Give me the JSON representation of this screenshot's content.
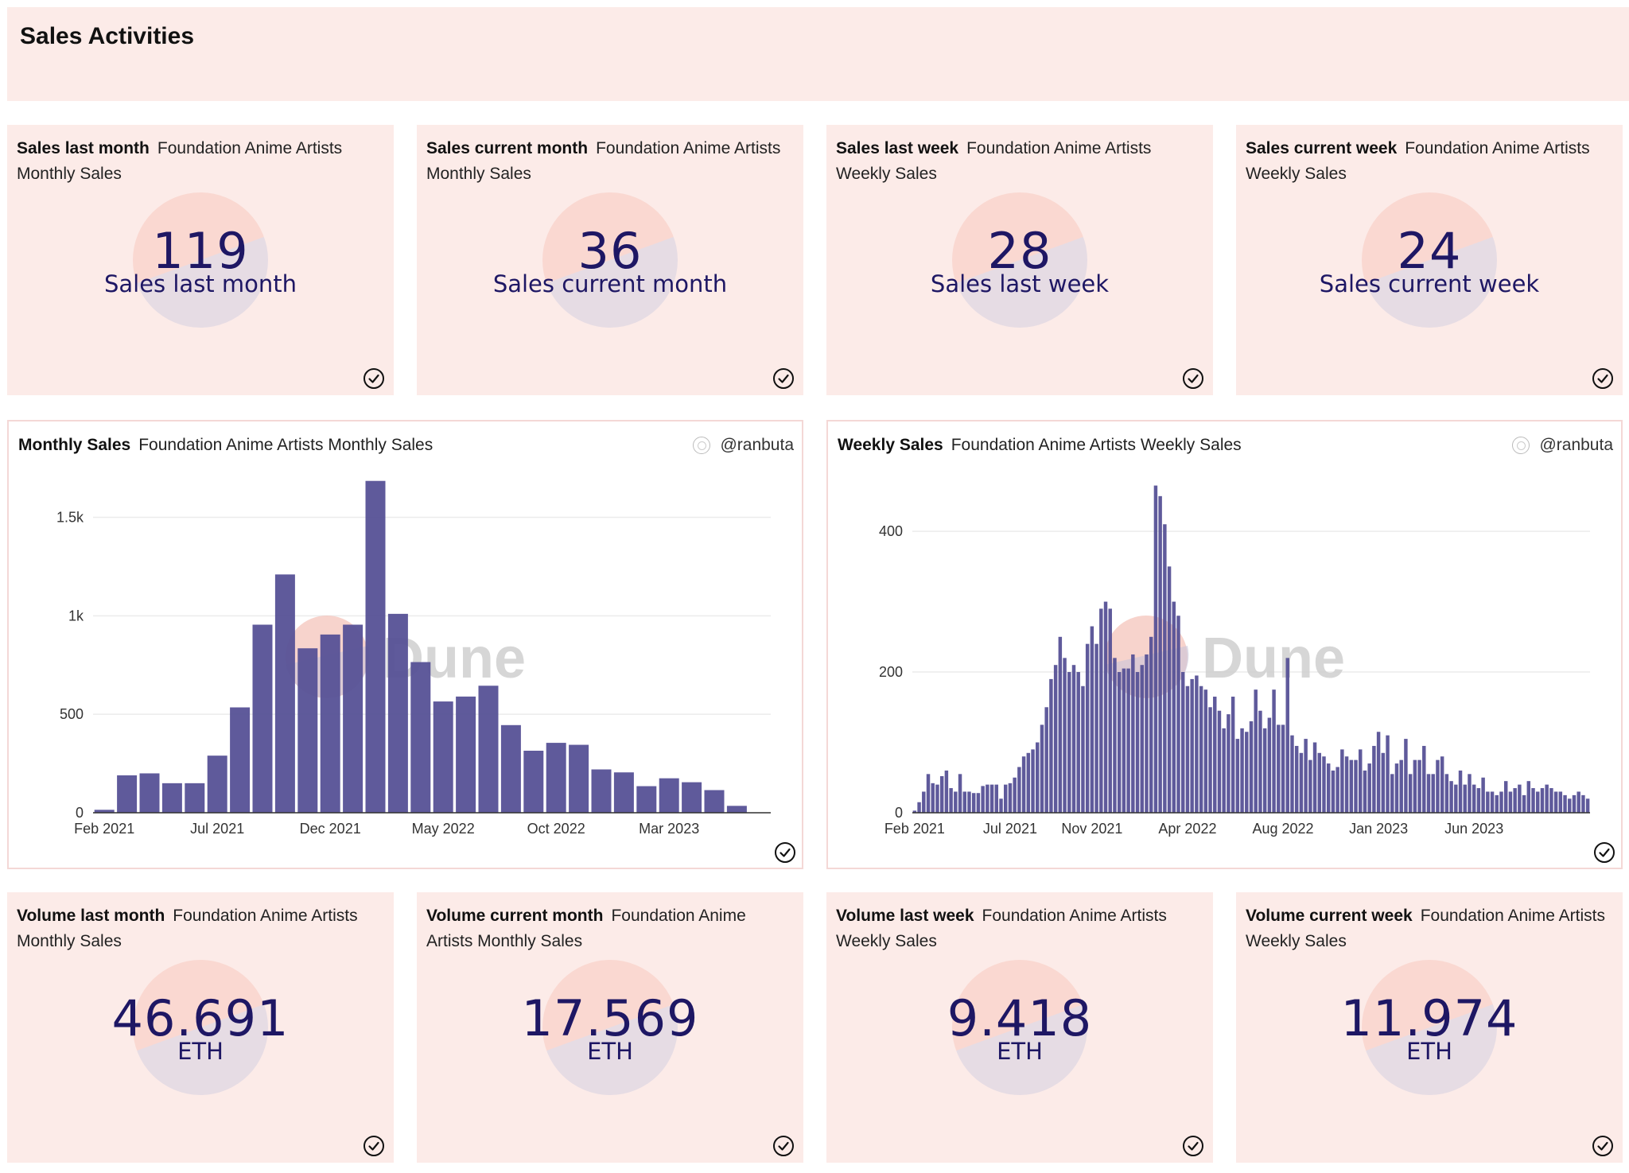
{
  "page": {
    "title": "Sales Activities"
  },
  "colors": {
    "accent": "#1e1764",
    "bar": "#565196",
    "card_bg": "#fcebe8"
  },
  "counters_top": [
    {
      "title": "Sales last month",
      "subtitle": "Foundation Anime Artists Monthly Sales",
      "value": "119",
      "label": "Sales last month"
    },
    {
      "title": "Sales current month",
      "subtitle": "Foundation Anime Artists Monthly Sales",
      "value": "36",
      "label": "Sales current month"
    },
    {
      "title": "Sales last week",
      "subtitle": "Foundation Anime Artists Weekly Sales",
      "value": "28",
      "label": "Sales last week"
    },
    {
      "title": "Sales current week",
      "subtitle": "Foundation Anime Artists Weekly Sales",
      "value": "24",
      "label": "Sales current week"
    }
  ],
  "counters_bottom": [
    {
      "title": "Volume last month",
      "subtitle": "Foundation Anime Artists Monthly Sales",
      "value": "46.691",
      "label": "ETH"
    },
    {
      "title": "Volume current month",
      "subtitle": "Foundation Anime Artists Monthly Sales",
      "value": "17.569",
      "label": "ETH"
    },
    {
      "title": "Volume last week",
      "subtitle": "Foundation Anime Artists Weekly Sales",
      "value": "9.418",
      "label": "ETH"
    },
    {
      "title": "Volume current week",
      "subtitle": "Foundation Anime Artists Weekly Sales",
      "value": "11.974",
      "label": "ETH"
    }
  ],
  "charts": {
    "monthly": {
      "title": "Monthly Sales",
      "subtitle": "Foundation Anime Artists Monthly Sales",
      "owner": "@ranbuta",
      "watermark": "Dune"
    },
    "weekly": {
      "title": "Weekly Sales",
      "subtitle": "Foundation Anime Artists Weekly Sales",
      "owner": "@ranbuta",
      "watermark": "Dune"
    }
  },
  "icons": {
    "check": "check-circle-icon",
    "avatar": "owner-avatar-icon",
    "logo": "dune-logo-icon"
  },
  "chart_data": [
    {
      "type": "bar",
      "title": "Monthly Sales",
      "ylim": [
        0,
        1700
      ],
      "yticks": [
        0,
        500,
        1000,
        1500
      ],
      "ytick_labels": [
        "0",
        "500",
        "1k",
        "1.5k"
      ],
      "xtick_labels": [
        {
          "index": 0,
          "label": "Feb 2021"
        },
        {
          "index": 5,
          "label": "Jul 2021"
        },
        {
          "index": 10,
          "label": "Dec 2021"
        },
        {
          "index": 15,
          "label": "May 2022"
        },
        {
          "index": 20,
          "label": "Oct 2022"
        },
        {
          "index": 25,
          "label": "Mar 2023"
        }
      ],
      "categories": [
        "Feb 2021",
        "Mar 2021",
        "Apr 2021",
        "May 2021",
        "Jun 2021",
        "Jul 2021",
        "Aug 2021",
        "Sep 2021",
        "Oct 2021",
        "Nov 2021",
        "Dec 2021",
        "Jan 2022",
        "Feb 2022",
        "Mar 2022",
        "Apr 2022",
        "May 2022",
        "Jun 2022",
        "Jul 2022",
        "Aug 2022",
        "Sep 2022",
        "Oct 2022",
        "Nov 2022",
        "Dec 2022",
        "Jan 2023",
        "Feb 2023",
        "Mar 2023",
        "Apr 2023",
        "May 2023",
        "Jun 2023",
        "Jul 2023"
      ],
      "values": [
        15,
        190,
        200,
        150,
        150,
        290,
        535,
        955,
        1210,
        835,
        905,
        955,
        1685,
        1010,
        765,
        565,
        590,
        645,
        445,
        315,
        355,
        345,
        220,
        205,
        135,
        175,
        155,
        115,
        35,
        0
      ],
      "grid": true,
      "legend": "none"
    },
    {
      "type": "bar",
      "title": "Weekly Sales",
      "ylim": [
        0,
        460
      ],
      "yticks": [
        0,
        200,
        400
      ],
      "ytick_labels": [
        "0",
        "200",
        "400"
      ],
      "xtick_labels": [
        {
          "index": 0,
          "label": "Feb 2021"
        },
        {
          "index": 21,
          "label": "Jul 2021"
        },
        {
          "index": 39,
          "label": "Nov 2021"
        },
        {
          "index": 60,
          "label": "Apr 2022"
        },
        {
          "index": 81,
          "label": "Aug 2022"
        },
        {
          "index": 102,
          "label": "Jan 2023"
        },
        {
          "index": 123,
          "label": "Jun 2023"
        }
      ],
      "values": [
        3,
        15,
        30,
        55,
        42,
        40,
        52,
        60,
        35,
        30,
        55,
        30,
        30,
        28,
        28,
        38,
        40,
        40,
        40,
        20,
        40,
        42,
        50,
        65,
        80,
        85,
        90,
        100,
        125,
        150,
        190,
        210,
        250,
        220,
        200,
        210,
        200,
        180,
        240,
        265,
        240,
        290,
        300,
        290,
        220,
        200,
        205,
        205,
        225,
        200,
        210,
        225,
        250,
        465,
        450,
        410,
        350,
        300,
        280,
        200,
        180,
        190,
        195,
        180,
        175,
        150,
        165,
        145,
        120,
        140,
        165,
        105,
        120,
        115,
        130,
        175,
        145,
        120,
        135,
        175,
        125,
        125,
        220,
        110,
        95,
        85,
        105,
        75,
        100,
        85,
        80,
        70,
        60,
        65,
        90,
        80,
        75,
        75,
        90,
        60,
        70,
        95,
        115,
        85,
        110,
        55,
        70,
        75,
        105,
        55,
        75,
        75,
        95,
        55,
        55,
        75,
        80,
        55,
        45,
        40,
        60,
        40,
        55,
        40,
        35,
        50,
        30,
        30,
        25,
        30,
        45,
        30,
        35,
        40,
        25,
        45,
        35,
        30,
        35,
        40,
        35,
        30,
        30,
        25,
        20,
        25,
        30,
        25,
        20
      ],
      "grid": true,
      "legend": "none"
    }
  ]
}
